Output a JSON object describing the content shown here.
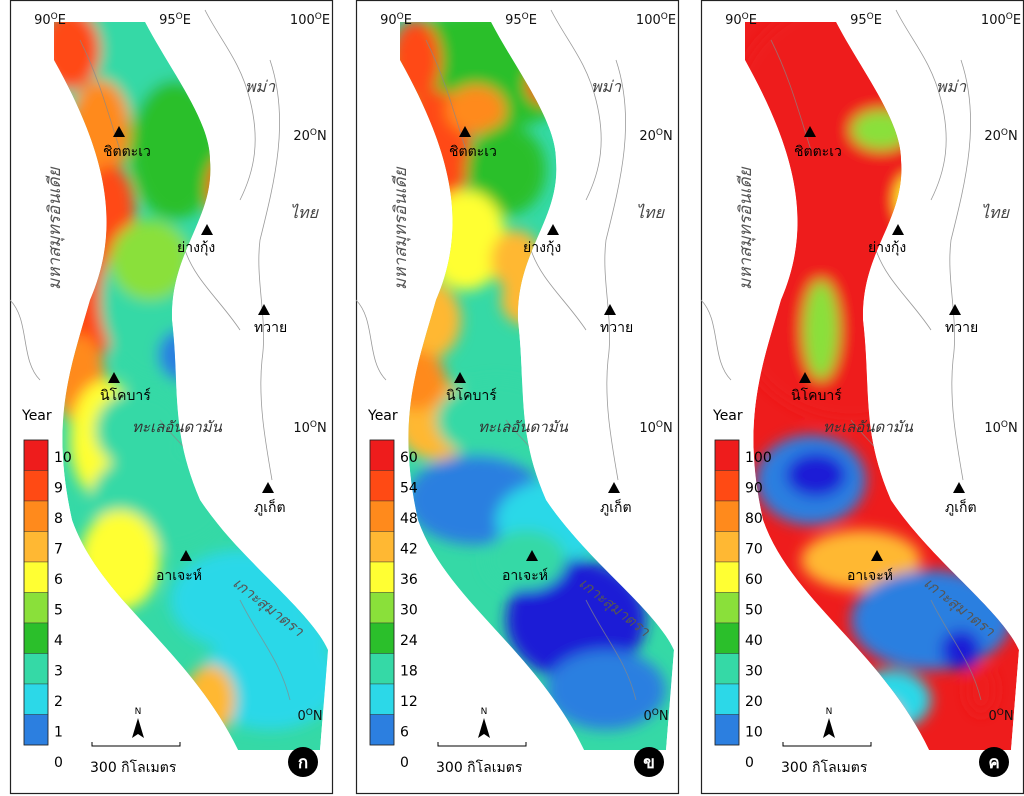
{
  "chart_data": [
    {
      "type": "heatmap",
      "panel_label": "ก",
      "legend_title": "Year",
      "legend_ticks": [
        "10",
        "9",
        "8",
        "7",
        "6",
        "5",
        "4",
        "3",
        "2",
        "1",
        "0"
      ],
      "range": [
        0,
        10
      ]
    },
    {
      "type": "heatmap",
      "panel_label": "ข",
      "legend_title": "Year",
      "legend_ticks": [
        "60",
        "54",
        "48",
        "42",
        "36",
        "30",
        "24",
        "18",
        "12",
        "6",
        "0"
      ],
      "range": [
        0,
        60
      ]
    },
    {
      "type": "heatmap",
      "panel_label": "ค",
      "legend_title": "Year",
      "legend_ticks": [
        "100",
        "90",
        "80",
        "70",
        "60",
        "50",
        "40",
        "30",
        "20",
        "10",
        "0"
      ],
      "range": [
        0,
        100
      ]
    }
  ],
  "map_labels": {
    "lon_90": "90",
    "lon_95": "95",
    "lon_100": "100",
    "lon_unit": "E",
    "lat_20": "20",
    "lat_10": "10",
    "lat_0": "0",
    "lat_unit": "N",
    "degree": "O",
    "myanmar": "พม่า",
    "thailand": "ไทย",
    "indian_ocean": "มหาสมุทรอินเดีย",
    "andaman_sea": "ทะเลอันดามัน",
    "sumatra": "เกาะสุมาตรา",
    "north": "N",
    "scale_text": "300 กิโลเมตร"
  },
  "cities": [
    {
      "name": "ชิตตะเว"
    },
    {
      "name": "ย่างกุ้ง"
    },
    {
      "name": "ทวาย"
    },
    {
      "name": "นิโคบาร์"
    },
    {
      "name": "ภูเก็ต"
    },
    {
      "name": "อาเจะห์"
    }
  ],
  "colors": {
    "scale": [
      "#1f1fd6",
      "#2c7fe0",
      "#2cd8e8",
      "#35d9a6",
      "#2bbf2b",
      "#8ae03a",
      "#ffff33",
      "#ffb833",
      "#ff8a1c",
      "#ff4a14",
      "#ee1c1c"
    ]
  }
}
